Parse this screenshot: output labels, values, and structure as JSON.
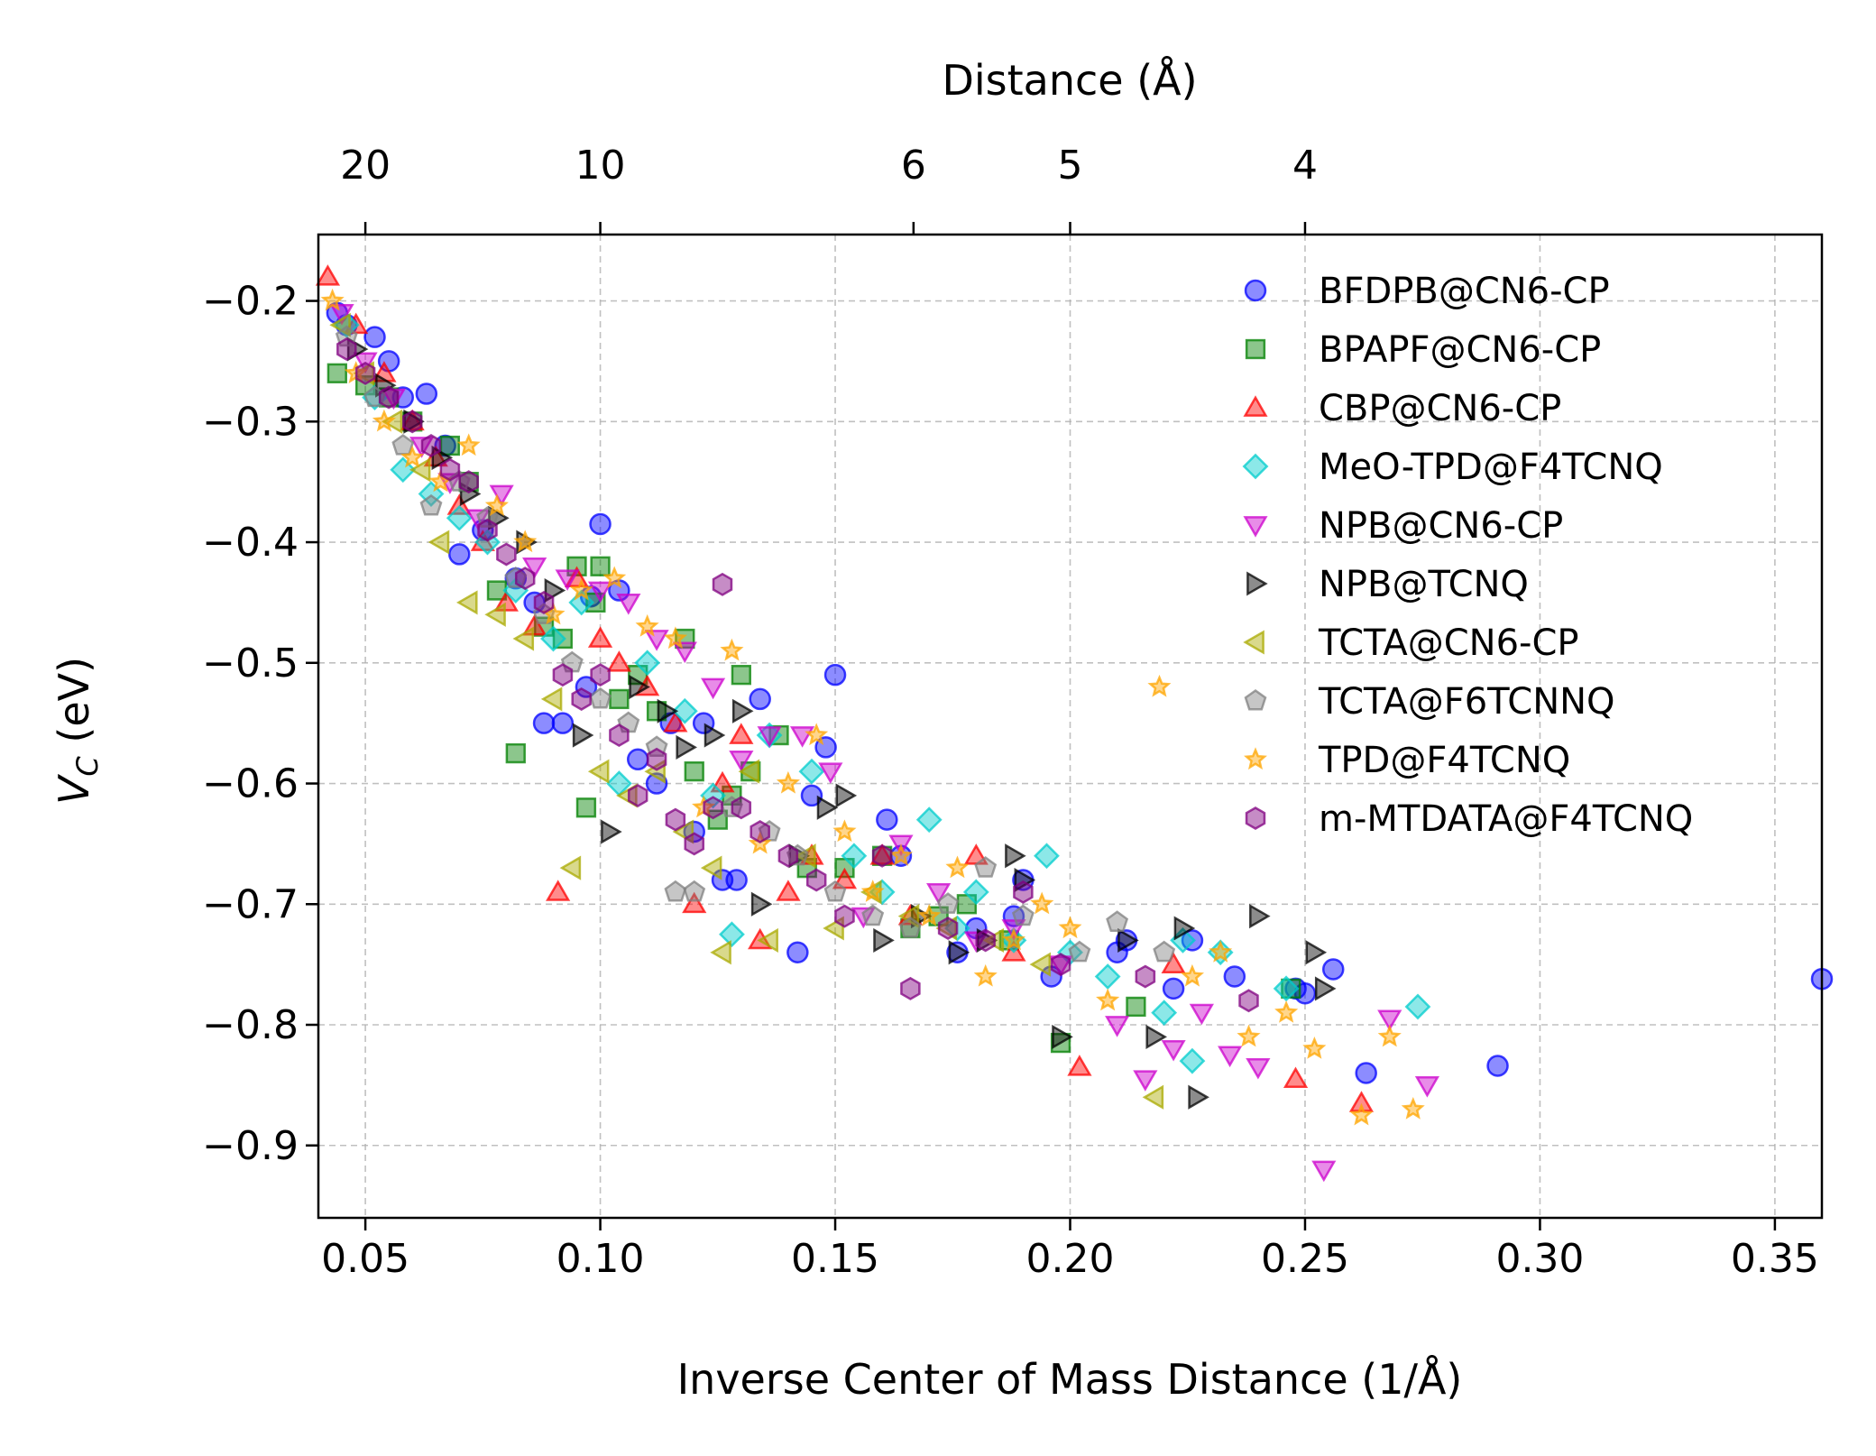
{
  "chart_data": {
    "type": "scatter",
    "xlabel": "Inverse Center of Mass Distance (1/Å)",
    "ylabel": "V_C (eV)",
    "ylabel_main": "V",
    "ylabel_sub": "C",
    "ylabel_unit": " (eV)",
    "top_xlabel": "Distance (Å)",
    "xlim": [
      0.04,
      0.36
    ],
    "ylim": [
      -0.96,
      -0.145
    ],
    "x_ticks": [
      0.05,
      0.1,
      0.15,
      0.2,
      0.25,
      0.3,
      0.35
    ],
    "x_tick_labels": [
      "0.05",
      "0.10",
      "0.15",
      "0.20",
      "0.25",
      "0.30",
      "0.35"
    ],
    "y_ticks": [
      -0.2,
      -0.3,
      -0.4,
      -0.5,
      -0.6,
      -0.7,
      -0.8,
      -0.9
    ],
    "y_tick_labels": [
      "−0.2",
      "−0.3",
      "−0.4",
      "−0.5",
      "−0.6",
      "−0.7",
      "−0.8",
      "−0.9"
    ],
    "top_ticks": [
      20,
      10,
      6,
      5,
      4
    ],
    "top_tick_labels": [
      "20",
      "10",
      "6",
      "5",
      "4"
    ],
    "grid": true,
    "legend_position": "upper right",
    "series": [
      {
        "name": "BFDPB@CN6-CP",
        "marker": "circle",
        "color": "#0000ff",
        "x": [
          0.044,
          0.046,
          0.052,
          0.055,
          0.058,
          0.063,
          0.067,
          0.07,
          0.075,
          0.082,
          0.086,
          0.088,
          0.092,
          0.097,
          0.098,
          0.1,
          0.104,
          0.108,
          0.112,
          0.115,
          0.12,
          0.122,
          0.126,
          0.129,
          0.134,
          0.142,
          0.145,
          0.148,
          0.15,
          0.161,
          0.164,
          0.176,
          0.18,
          0.188,
          0.19,
          0.196,
          0.21,
          0.212,
          0.222,
          0.226,
          0.235,
          0.248,
          0.25,
          0.256,
          0.263,
          0.291,
          0.36
        ],
        "y": [
          -0.21,
          -0.22,
          -0.23,
          -0.25,
          -0.28,
          -0.277,
          -0.32,
          -0.41,
          -0.39,
          -0.43,
          -0.45,
          -0.55,
          -0.55,
          -0.52,
          -0.445,
          -0.385,
          -0.44,
          -0.58,
          -0.6,
          -0.55,
          -0.64,
          -0.55,
          -0.68,
          -0.68,
          -0.53,
          -0.74,
          -0.61,
          -0.57,
          -0.51,
          -0.63,
          -0.66,
          -0.74,
          -0.72,
          -0.71,
          -0.68,
          -0.76,
          -0.74,
          -0.73,
          -0.77,
          -0.73,
          -0.76,
          -0.77,
          -0.774,
          -0.754,
          -0.84,
          -0.834,
          -0.762
        ]
      },
      {
        "name": "BPAPF@CN6-CP",
        "marker": "square",
        "color": "#008000",
        "x": [
          0.044,
          0.05,
          0.055,
          0.06,
          0.068,
          0.072,
          0.078,
          0.082,
          0.088,
          0.092,
          0.095,
          0.097,
          0.099,
          0.1,
          0.104,
          0.108,
          0.112,
          0.118,
          0.12,
          0.125,
          0.128,
          0.13,
          0.132,
          0.138,
          0.144,
          0.152,
          0.16,
          0.166,
          0.172,
          0.178,
          0.187,
          0.198,
          0.214,
          0.247
        ],
        "y": [
          -0.26,
          -0.27,
          -0.28,
          -0.3,
          -0.32,
          -0.35,
          -0.44,
          -0.575,
          -0.47,
          -0.48,
          -0.42,
          -0.62,
          -0.45,
          -0.42,
          -0.53,
          -0.51,
          -0.54,
          -0.48,
          -0.59,
          -0.63,
          -0.61,
          -0.51,
          -0.59,
          -0.56,
          -0.67,
          -0.67,
          -0.66,
          -0.72,
          -0.71,
          -0.7,
          -0.73,
          -0.815,
          -0.785,
          -0.77
        ]
      },
      {
        "name": "CBP@CN6-CP",
        "marker": "triangle-up",
        "color": "#ff0000",
        "x": [
          0.042,
          0.048,
          0.054,
          0.06,
          0.065,
          0.07,
          0.075,
          0.08,
          0.086,
          0.091,
          0.095,
          0.1,
          0.104,
          0.11,
          0.116,
          0.12,
          0.126,
          0.13,
          0.134,
          0.14,
          0.145,
          0.152,
          0.16,
          0.166,
          0.18,
          0.188,
          0.202,
          0.222,
          0.248,
          0.262
        ],
        "y": [
          -0.18,
          -0.22,
          -0.26,
          -0.3,
          -0.33,
          -0.37,
          -0.4,
          -0.45,
          -0.47,
          -0.69,
          -0.43,
          -0.48,
          -0.5,
          -0.52,
          -0.55,
          -0.7,
          -0.6,
          -0.56,
          -0.73,
          -0.69,
          -0.66,
          -0.68,
          -0.66,
          -0.71,
          -0.66,
          -0.74,
          -0.835,
          -0.75,
          -0.845,
          -0.865
        ]
      },
      {
        "name": "MeO-TPD@F4TCNQ",
        "marker": "diamond",
        "color": "#00cccc",
        "x": [
          0.046,
          0.052,
          0.058,
          0.064,
          0.07,
          0.076,
          0.082,
          0.09,
          0.096,
          0.104,
          0.11,
          0.118,
          0.124,
          0.128,
          0.136,
          0.145,
          0.154,
          0.16,
          0.17,
          0.176,
          0.18,
          0.188,
          0.195,
          0.2,
          0.208,
          0.22,
          0.224,
          0.226,
          0.232,
          0.246,
          0.274
        ],
        "y": [
          -0.22,
          -0.28,
          -0.34,
          -0.36,
          -0.38,
          -0.4,
          -0.44,
          -0.48,
          -0.45,
          -0.6,
          -0.5,
          -0.54,
          -0.61,
          -0.725,
          -0.56,
          -0.59,
          -0.66,
          -0.69,
          -0.63,
          -0.72,
          -0.69,
          -0.73,
          -0.66,
          -0.74,
          -0.76,
          -0.79,
          -0.73,
          -0.83,
          -0.74,
          -0.77,
          -0.785
        ]
      },
      {
        "name": "NPB@CN6-CP",
        "marker": "triangle-down",
        "color": "#cc00cc",
        "x": [
          0.045,
          0.05,
          0.056,
          0.062,
          0.068,
          0.074,
          0.079,
          0.086,
          0.093,
          0.1,
          0.106,
          0.112,
          0.118,
          0.124,
          0.13,
          0.136,
          0.143,
          0.149,
          0.156,
          0.164,
          0.172,
          0.18,
          0.188,
          0.198,
          0.21,
          0.216,
          0.222,
          0.228,
          0.234,
          0.24,
          0.254,
          0.268,
          0.276
        ],
        "y": [
          -0.21,
          -0.25,
          -0.28,
          -0.32,
          -0.35,
          -0.38,
          -0.36,
          -0.42,
          -0.43,
          -0.44,
          -0.45,
          -0.48,
          -0.49,
          -0.52,
          -0.58,
          -0.56,
          -0.56,
          -0.59,
          -0.71,
          -0.65,
          -0.69,
          -0.73,
          -0.72,
          -0.75,
          -0.8,
          -0.845,
          -0.82,
          -0.79,
          -0.825,
          -0.835,
          -0.92,
          -0.795,
          -0.85
        ]
      },
      {
        "name": "NPB@TCNQ",
        "marker": "triangle-right",
        "color": "#000000",
        "x": [
          0.048,
          0.054,
          0.06,
          0.066,
          0.072,
          0.078,
          0.084,
          0.09,
          0.096,
          0.102,
          0.108,
          0.114,
          0.118,
          0.124,
          0.13,
          0.134,
          0.142,
          0.148,
          0.152,
          0.16,
          0.168,
          0.176,
          0.182,
          0.188,
          0.19,
          0.198,
          0.212,
          0.218,
          0.224,
          0.227,
          0.24,
          0.252,
          0.254
        ],
        "y": [
          -0.24,
          -0.27,
          -0.3,
          -0.33,
          -0.36,
          -0.38,
          -0.4,
          -0.44,
          -0.56,
          -0.64,
          -0.52,
          -0.54,
          -0.57,
          -0.56,
          -0.54,
          -0.7,
          -0.66,
          -0.62,
          -0.61,
          -0.73,
          -0.71,
          -0.74,
          -0.73,
          -0.66,
          -0.68,
          -0.81,
          -0.73,
          -0.81,
          -0.72,
          -0.86,
          -0.71,
          -0.74,
          -0.77
        ]
      },
      {
        "name": "TCTA@CN6-CP",
        "marker": "triangle-left",
        "color": "#aaaa00",
        "x": [
          0.045,
          0.05,
          0.056,
          0.062,
          0.066,
          0.072,
          0.078,
          0.084,
          0.09,
          0.094,
          0.1,
          0.106,
          0.112,
          0.118,
          0.124,
          0.126,
          0.132,
          0.136,
          0.144,
          0.15,
          0.158,
          0.166,
          0.174,
          0.184,
          0.194,
          0.218
        ],
        "y": [
          -0.22,
          -0.26,
          -0.3,
          -0.34,
          -0.4,
          -0.45,
          -0.46,
          -0.48,
          -0.53,
          -0.67,
          -0.59,
          -0.61,
          -0.59,
          -0.64,
          -0.67,
          -0.74,
          -0.59,
          -0.73,
          -0.66,
          -0.72,
          -0.69,
          -0.71,
          -0.72,
          -0.73,
          -0.75,
          -0.86
        ]
      },
      {
        "name": "TCTA@F6TCNNQ",
        "marker": "pentagon",
        "color": "#808080",
        "x": [
          0.046,
          0.052,
          0.058,
          0.064,
          0.07,
          0.076,
          0.082,
          0.088,
          0.094,
          0.1,
          0.106,
          0.112,
          0.116,
          0.12,
          0.128,
          0.136,
          0.142,
          0.15,
          0.158,
          0.166,
          0.174,
          0.182,
          0.19,
          0.202,
          0.21,
          0.22
        ],
        "y": [
          -0.23,
          -0.28,
          -0.32,
          -0.37,
          -0.35,
          -0.38,
          -0.43,
          -0.46,
          -0.5,
          -0.53,
          -0.55,
          -0.57,
          -0.69,
          -0.69,
          -0.62,
          -0.64,
          -0.66,
          -0.69,
          -0.71,
          -0.72,
          -0.7,
          -0.67,
          -0.71,
          -0.74,
          -0.715,
          -0.74
        ]
      },
      {
        "name": "TPD@F4TCNQ",
        "marker": "star",
        "color": "#ffa500",
        "x": [
          0.043,
          0.048,
          0.054,
          0.06,
          0.066,
          0.072,
          0.078,
          0.084,
          0.09,
          0.096,
          0.103,
          0.11,
          0.116,
          0.122,
          0.128,
          0.134,
          0.14,
          0.146,
          0.152,
          0.158,
          0.164,
          0.17,
          0.176,
          0.182,
          0.188,
          0.194,
          0.2,
          0.208,
          0.219,
          0.226,
          0.232,
          0.238,
          0.246,
          0.252,
          0.262,
          0.268,
          0.273
        ],
        "y": [
          -0.2,
          -0.26,
          -0.3,
          -0.33,
          -0.35,
          -0.32,
          -0.37,
          -0.4,
          -0.46,
          -0.44,
          -0.43,
          -0.47,
          -0.48,
          -0.62,
          -0.49,
          -0.65,
          -0.6,
          -0.56,
          -0.64,
          -0.69,
          -0.66,
          -0.71,
          -0.67,
          -0.76,
          -0.73,
          -0.7,
          -0.72,
          -0.78,
          -0.52,
          -0.76,
          -0.74,
          -0.81,
          -0.79,
          -0.82,
          -0.875,
          -0.81,
          -0.87
        ]
      },
      {
        "name": "m-MTDATA@F4TCNQ",
        "marker": "hexagon",
        "color": "#800080",
        "x": [
          0.046,
          0.05,
          0.055,
          0.06,
          0.064,
          0.068,
          0.072,
          0.076,
          0.08,
          0.084,
          0.088,
          0.092,
          0.096,
          0.1,
          0.104,
          0.108,
          0.112,
          0.116,
          0.12,
          0.124,
          0.126,
          0.13,
          0.134,
          0.14,
          0.146,
          0.152,
          0.16,
          0.166,
          0.174,
          0.182,
          0.19,
          0.198,
          0.216,
          0.238
        ],
        "y": [
          -0.24,
          -0.26,
          -0.28,
          -0.3,
          -0.32,
          -0.34,
          -0.35,
          -0.39,
          -0.41,
          -0.43,
          -0.45,
          -0.51,
          -0.53,
          -0.51,
          -0.56,
          -0.61,
          -0.58,
          -0.63,
          -0.65,
          -0.62,
          -0.435,
          -0.62,
          -0.64,
          -0.66,
          -0.68,
          -0.71,
          -0.66,
          -0.77,
          -0.72,
          -0.73,
          -0.69,
          -0.75,
          -0.76,
          -0.78
        ]
      }
    ]
  }
}
